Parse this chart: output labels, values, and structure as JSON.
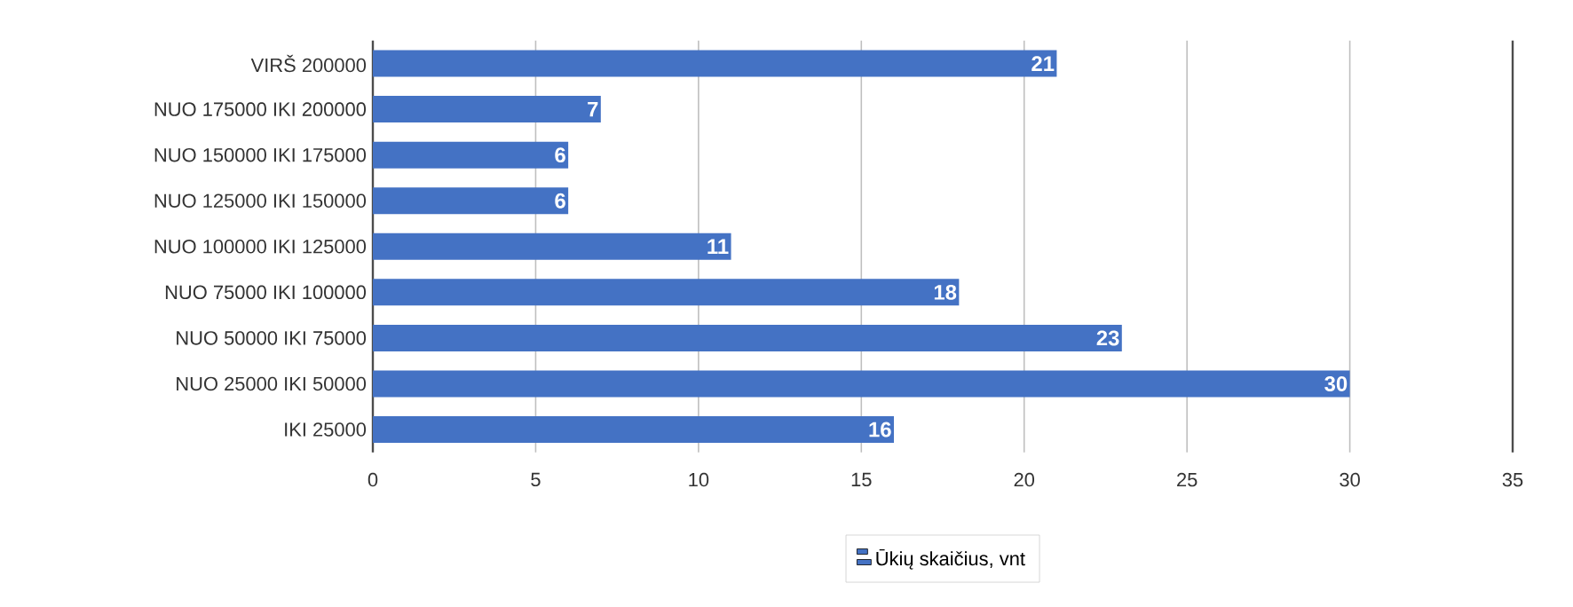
{
  "chart_data": {
    "type": "bar",
    "orientation": "horizontal",
    "categories": [
      "VIRŠ 200000",
      "NUO 175000 IKI 200000",
      "NUO 150000 IKI 175000",
      "NUO 125000 IKI 150000",
      "NUO 100000 IKI 125000",
      "NUO 75000 IKI 100000",
      "NUO 50000 IKI 75000",
      "NUO 25000 IKI 50000",
      "IKI 25000"
    ],
    "series": [
      {
        "name": "Ūkių skaičius, vnt",
        "color": "#4472c4",
        "values": [
          21,
          7,
          6,
          6,
          11,
          18,
          23,
          30,
          16
        ]
      }
    ],
    "xlim": [
      0,
      35
    ],
    "xticks": [
      0,
      5,
      10,
      15,
      20,
      25,
      30,
      35
    ],
    "grid": "x",
    "legend": "bottom",
    "data_labels": true
  }
}
